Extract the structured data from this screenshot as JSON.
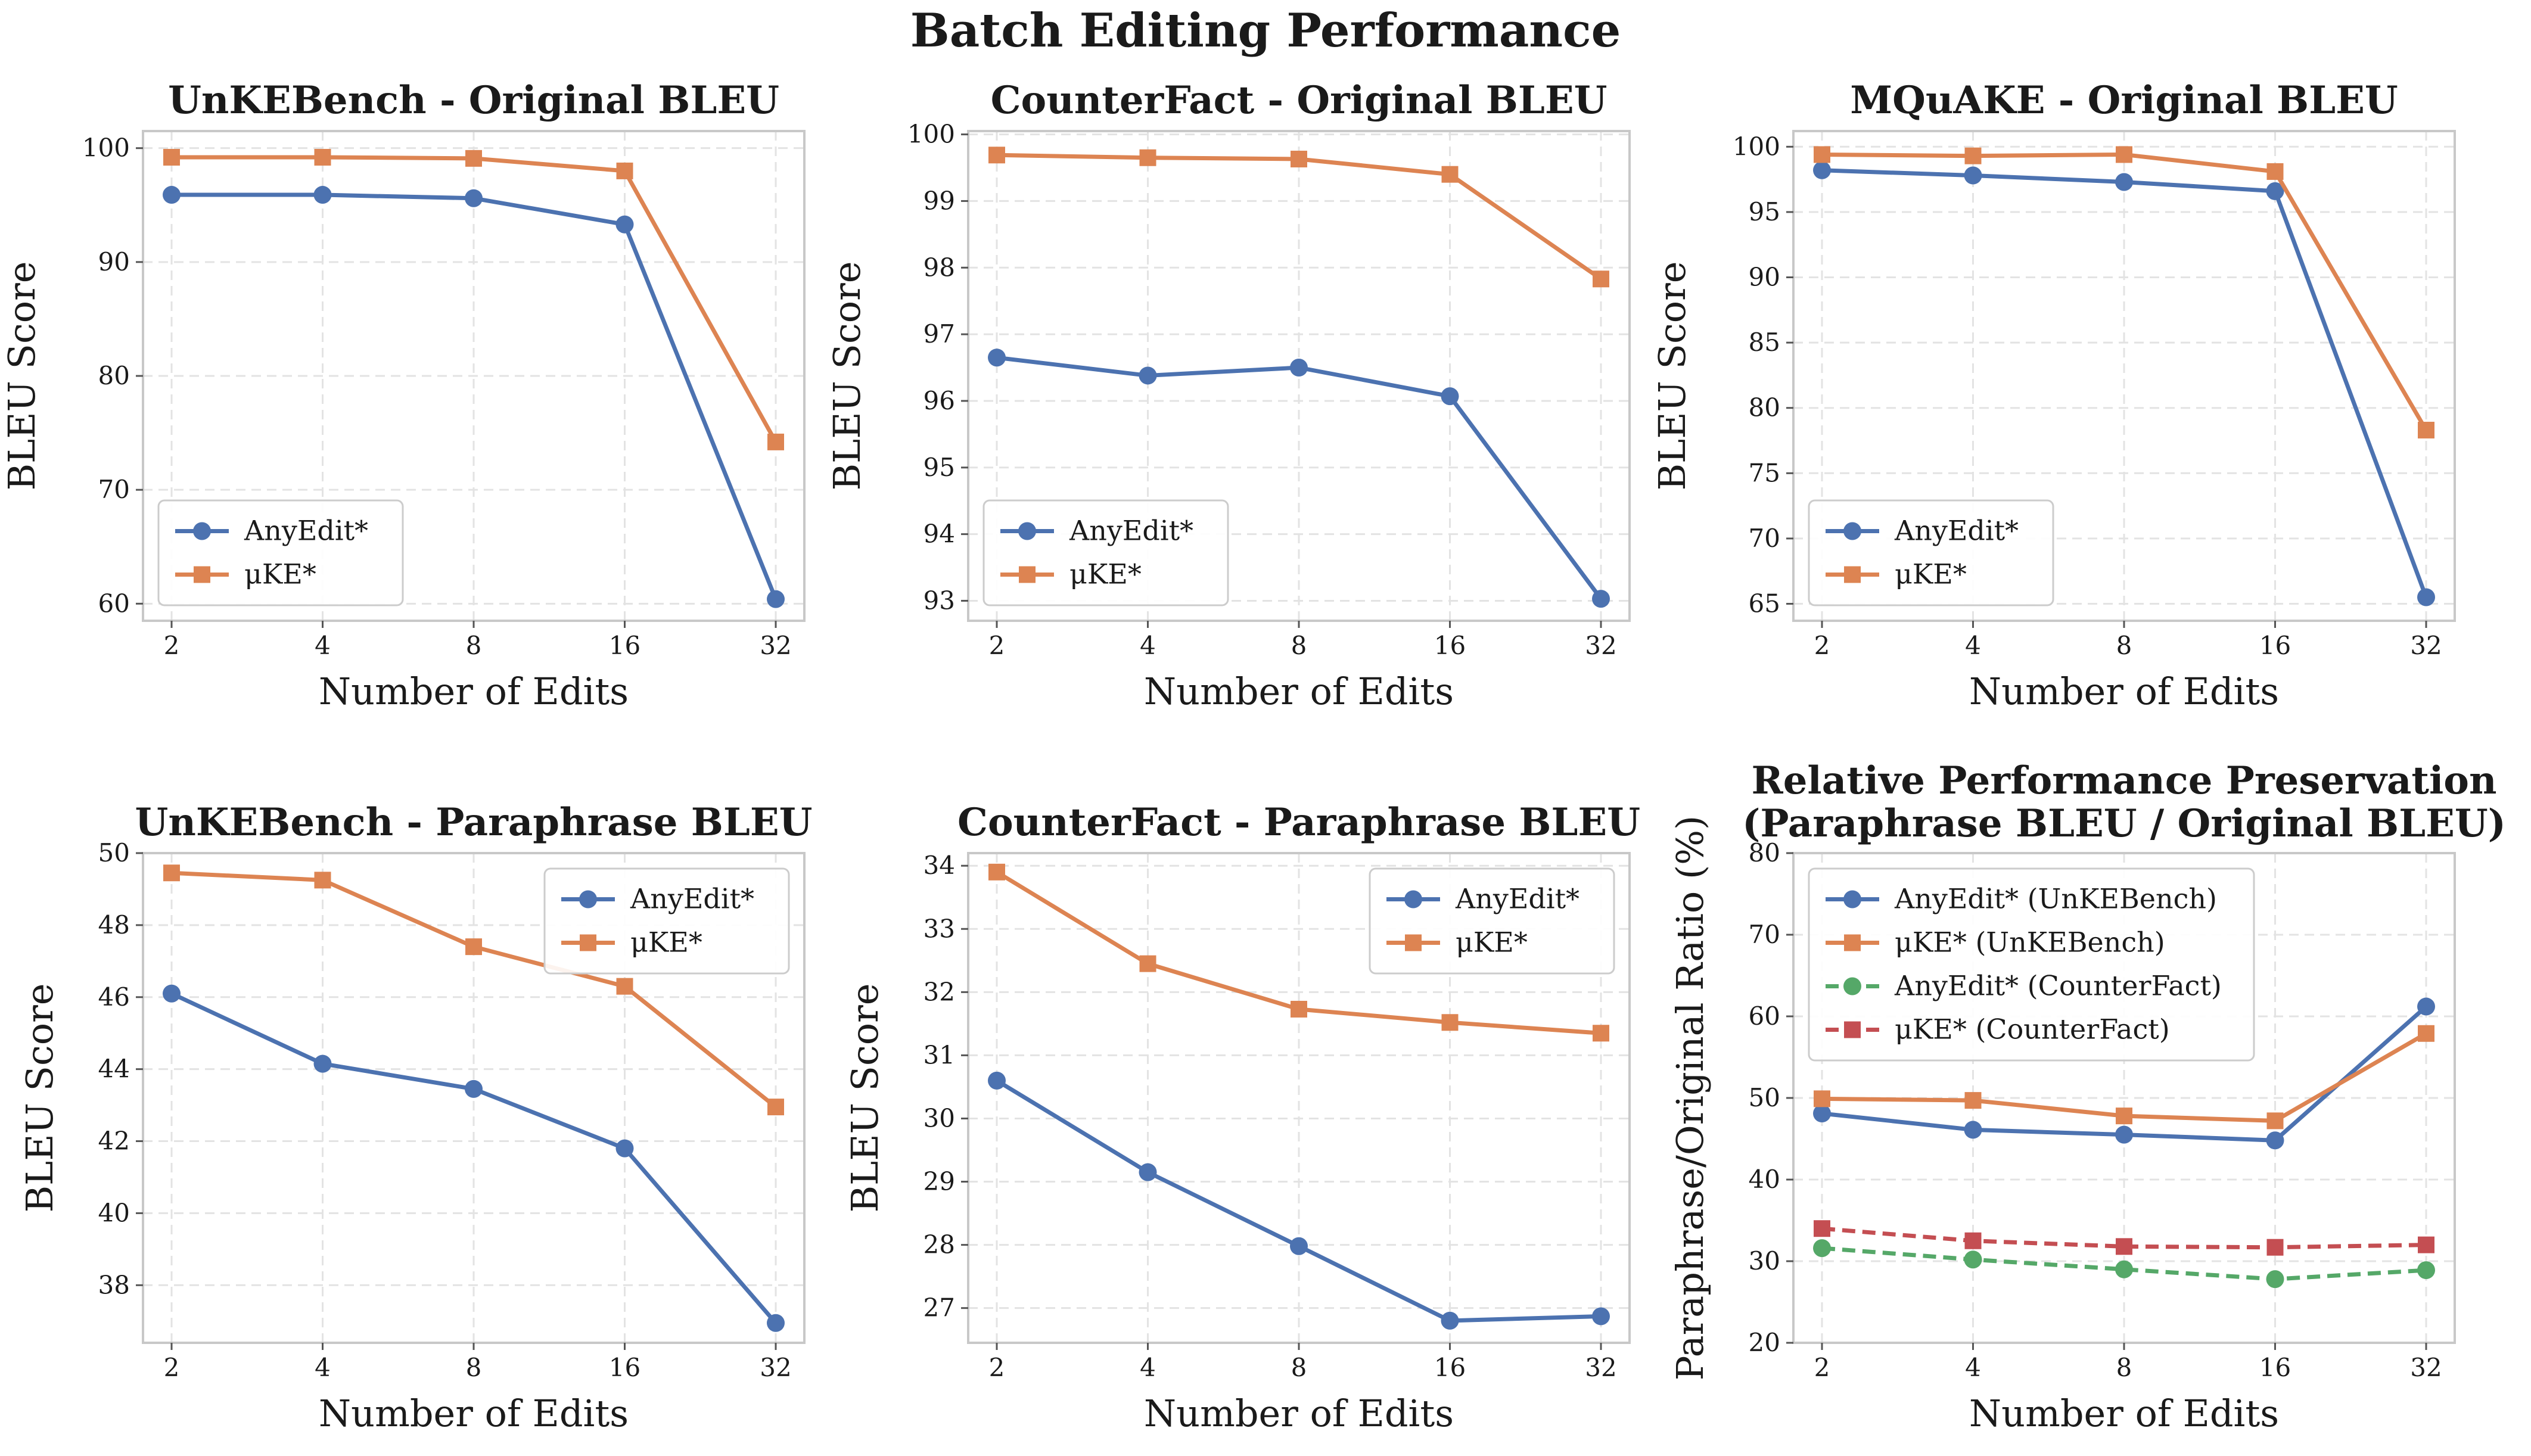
{
  "figure": {
    "suptitle": "Batch Editing Performance"
  },
  "colors": {
    "blue": "#4c72b0",
    "orange": "#dd8452",
    "green": "#55a868",
    "red": "#c44e52",
    "grid": "#e3e3e3",
    "spine": "#c8c8c8"
  },
  "chart_data": [
    {
      "type": "line",
      "title": "UnKEBench - Original BLEU",
      "xlabel": "Number of Edits",
      "ylabel": "BLEU Score",
      "categories": [
        "2",
        "4",
        "8",
        "16",
        "32"
      ],
      "ylim": [
        58.5,
        101.5
      ],
      "yticks": [
        60,
        70,
        80,
        90,
        100
      ],
      "legend_position": "lower-left",
      "series": [
        {
          "name": "AnyEdit*",
          "values": [
            95.9,
            95.9,
            95.6,
            93.3,
            60.4
          ],
          "color": "blue",
          "marker": "circle",
          "dash": false
        },
        {
          "name": "μKE*",
          "values": [
            99.2,
            99.2,
            99.1,
            98.0,
            74.2
          ],
          "color": "orange",
          "marker": "square",
          "dash": false
        }
      ]
    },
    {
      "type": "line",
      "title": "CounterFact - Original BLEU",
      "xlabel": "Number of Edits",
      "ylabel": "BLEU Score",
      "categories": [
        "2",
        "4",
        "8",
        "16",
        "32"
      ],
      "ylim": [
        92.7,
        100.05
      ],
      "yticks": [
        93,
        94,
        95,
        96,
        97,
        98,
        99,
        100
      ],
      "legend_position": "lower-left",
      "series": [
        {
          "name": "AnyEdit*",
          "values": [
            96.65,
            96.38,
            96.5,
            96.07,
            93.03
          ],
          "color": "blue",
          "marker": "circle",
          "dash": false
        },
        {
          "name": "μKE*",
          "values": [
            99.69,
            99.65,
            99.63,
            99.4,
            97.83
          ],
          "color": "orange",
          "marker": "square",
          "dash": false
        }
      ]
    },
    {
      "type": "line",
      "title": "MQuAKE - Original BLEU",
      "xlabel": "Number of Edits",
      "ylabel": "BLEU Score",
      "categories": [
        "2",
        "4",
        "8",
        "16",
        "32"
      ],
      "ylim": [
        63.7,
        101.2
      ],
      "yticks": [
        65,
        70,
        75,
        80,
        85,
        90,
        95,
        100
      ],
      "legend_position": "lower-left",
      "series": [
        {
          "name": "AnyEdit*",
          "values": [
            98.2,
            97.8,
            97.3,
            96.6,
            65.5
          ],
          "color": "blue",
          "marker": "circle",
          "dash": false
        },
        {
          "name": "μKE*",
          "values": [
            99.4,
            99.3,
            99.4,
            98.1,
            78.3
          ],
          "color": "orange",
          "marker": "square",
          "dash": false
        }
      ]
    },
    {
      "type": "line",
      "title": "UnKEBench - Paraphrase BLEU",
      "xlabel": "Number of Edits",
      "ylabel": "BLEU Score",
      "categories": [
        "2",
        "4",
        "8",
        "16",
        "32"
      ],
      "ylim": [
        36.4,
        50.0
      ],
      "yticks": [
        38,
        40,
        42,
        44,
        46,
        48,
        50
      ],
      "legend_position": "upper-right",
      "series": [
        {
          "name": "AnyEdit*",
          "values": [
            46.1,
            44.15,
            43.45,
            41.8,
            36.95
          ],
          "color": "blue",
          "marker": "circle",
          "dash": false
        },
        {
          "name": "μKE*",
          "values": [
            49.45,
            49.25,
            47.4,
            46.3,
            42.95
          ],
          "color": "orange",
          "marker": "square",
          "dash": false
        }
      ]
    },
    {
      "type": "line",
      "title": "CounterFact - Paraphrase BLEU",
      "xlabel": "Number of Edits",
      "ylabel": "BLEU Score",
      "categories": [
        "2",
        "4",
        "8",
        "16",
        "32"
      ],
      "ylim": [
        26.45,
        34.2
      ],
      "yticks": [
        27,
        28,
        29,
        30,
        31,
        32,
        33,
        34
      ],
      "legend_position": "upper-right",
      "series": [
        {
          "name": "AnyEdit*",
          "values": [
            30.6,
            29.15,
            27.98,
            26.8,
            26.87
          ],
          "color": "blue",
          "marker": "circle",
          "dash": false
        },
        {
          "name": "μKE*",
          "values": [
            33.9,
            32.45,
            31.73,
            31.52,
            31.35
          ],
          "color": "orange",
          "marker": "square",
          "dash": false
        }
      ]
    },
    {
      "type": "line",
      "title": "Relative Performance Preservation\n(Paraphrase BLEU / Original BLEU)",
      "xlabel": "Number of Edits",
      "ylabel": "Paraphrase/Original Ratio (%)",
      "categories": [
        "2",
        "4",
        "8",
        "16",
        "32"
      ],
      "ylim": [
        20,
        80
      ],
      "yticks": [
        20,
        30,
        40,
        50,
        60,
        70,
        80
      ],
      "legend_position": "upper-left",
      "series": [
        {
          "name": "AnyEdit* (UnKEBench)",
          "values": [
            48.1,
            46.1,
            45.5,
            44.8,
            61.2
          ],
          "color": "blue",
          "marker": "circle",
          "dash": false
        },
        {
          "name": "μKE* (UnKEBench)",
          "values": [
            49.9,
            49.7,
            47.8,
            47.2,
            57.9
          ],
          "color": "orange",
          "marker": "square",
          "dash": false
        },
        {
          "name": "AnyEdit* (CounterFact)",
          "values": [
            31.6,
            30.2,
            29.0,
            27.8,
            28.9
          ],
          "color": "green",
          "marker": "circle",
          "dash": true
        },
        {
          "name": "μKE* (CounterFact)",
          "values": [
            34.0,
            32.5,
            31.8,
            31.7,
            32.0
          ],
          "color": "red",
          "marker": "square",
          "dash": true
        }
      ]
    }
  ]
}
